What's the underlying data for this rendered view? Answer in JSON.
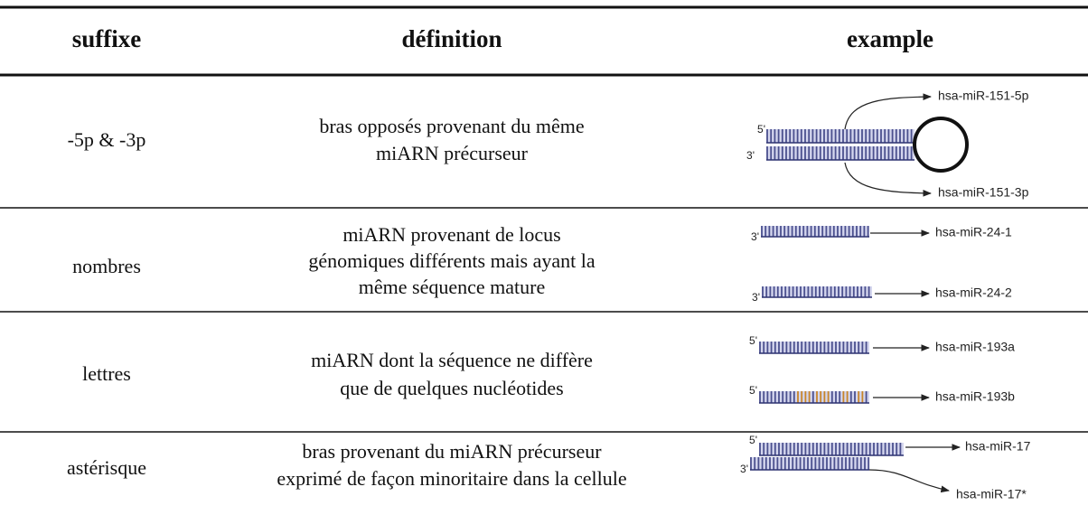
{
  "table": {
    "columns": [
      "suffixe",
      "définition",
      "example"
    ],
    "rows": [
      {
        "suffix": "-5p & -3p",
        "definition": [
          "bras opposés provenant du même",
          "miARN précurseur"
        ],
        "example": {
          "ends": [
            "5'",
            "3'"
          ],
          "names": [
            "hsa-miR-151-5p",
            "hsa-miR-151-3p"
          ]
        }
      },
      {
        "suffix": "nombres",
        "definition": [
          "miARN provenant de locus",
          "génomiques différents mais ayant la",
          "même séquence mature"
        ],
        "example": {
          "ends": [
            "3'",
            "3'"
          ],
          "names": [
            "hsa-miR-24-1",
            "hsa-miR-24-2"
          ]
        }
      },
      {
        "suffix": "lettres",
        "definition": [
          "miARN dont la séquence ne diffère",
          "que de quelques nucléotides"
        ],
        "example": {
          "ends": [
            "5'",
            "5'"
          ],
          "names": [
            "hsa-miR-193a",
            "hsa-miR-193b"
          ]
        }
      },
      {
        "suffix": "astérisque",
        "definition": [
          "bras provenant du miARN précurseur",
          "exprimé de façon minoritaire dans la cellule"
        ],
        "example": {
          "ends": [
            "5'",
            "3'"
          ],
          "names": [
            "hsa-miR-17",
            "hsa-miR-17*"
          ]
        }
      }
    ]
  }
}
